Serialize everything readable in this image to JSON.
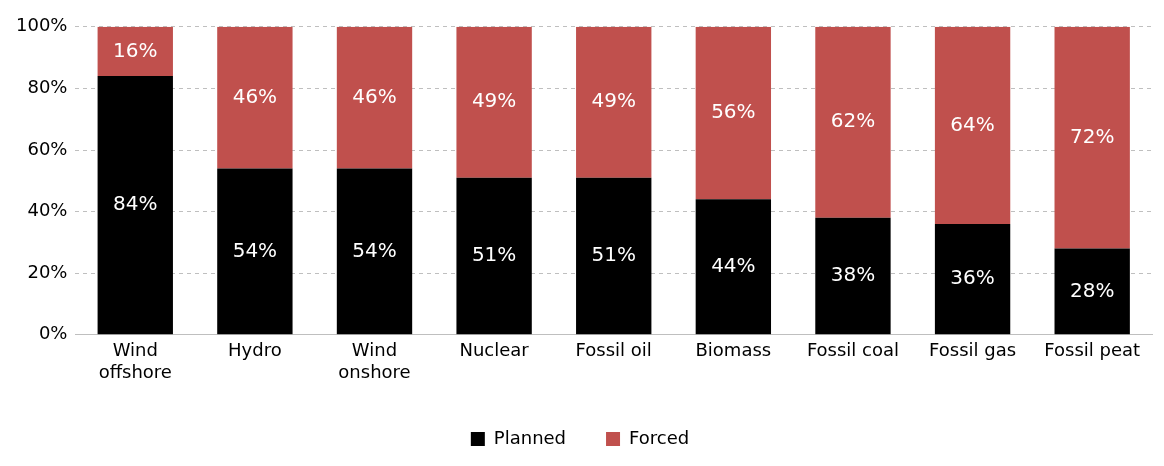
{
  "chart_data": {
    "type": "bar",
    "stacked": true,
    "categories": [
      "Wind offshore",
      "Hydro",
      "Wind onshore",
      "Nuclear",
      "Fossil oil",
      "Biomass",
      "Fossil coal",
      "Fossil gas",
      "Fossil peat"
    ],
    "series": [
      {
        "name": "Planned",
        "color": "#000000",
        "values": [
          84,
          54,
          54,
          51,
          51,
          44,
          38,
          36,
          28
        ],
        "value_labels": [
          "84%",
          "54%",
          "54%",
          "51%",
          "51%",
          "44%",
          "38%",
          "36%",
          "28%"
        ]
      },
      {
        "name": "Forced",
        "color": "#c0504d",
        "values": [
          16,
          46,
          46,
          49,
          49,
          56,
          62,
          64,
          72
        ],
        "value_labels": [
          "16%",
          "46%",
          "46%",
          "49%",
          "49%",
          "56%",
          "62%",
          "64%",
          "72%"
        ]
      }
    ],
    "ylim": [
      0,
      100
    ],
    "yticks": [
      {
        "value": 0,
        "label": "0%"
      },
      {
        "value": 20,
        "label": "20%"
      },
      {
        "value": 40,
        "label": "40%"
      },
      {
        "value": 60,
        "label": "60%"
      },
      {
        "value": 80,
        "label": "80%"
      },
      {
        "value": 100,
        "label": "100%"
      }
    ],
    "grid": "y",
    "legend": "bottom"
  }
}
